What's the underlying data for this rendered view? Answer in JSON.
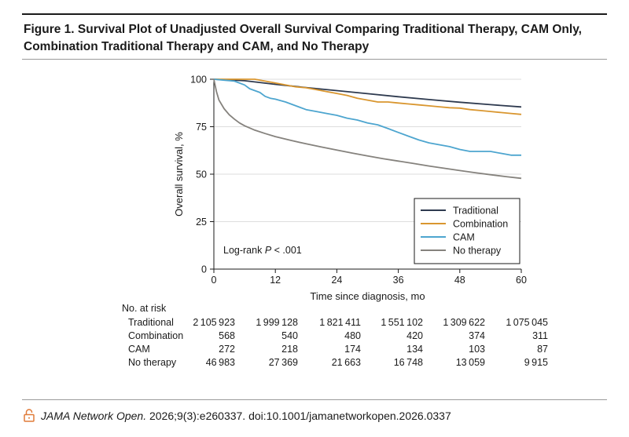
{
  "figure": {
    "title": "Figure 1. Survival Plot of Unadjusted Overall Survival Comparing Traditional Therapy, CAM Only, Combination Traditional Therapy and CAM, and No Therapy"
  },
  "chart_data": {
    "type": "line",
    "xlabel": "Time since diagnosis, mo",
    "ylabel": "Overall survival, %",
    "xlim": [
      0,
      60
    ],
    "ylim": [
      0,
      100
    ],
    "xticks": [
      0,
      12,
      24,
      36,
      48,
      60
    ],
    "yticks": [
      0,
      25,
      50,
      75,
      100
    ],
    "grid": "horizontal",
    "legend_position": "bottom-right",
    "annotation": "Log-rank P < .001",
    "series": [
      {
        "name": "Traditional",
        "color": "#2e3a4f",
        "x": [
          0,
          6,
          12,
          18,
          24,
          30,
          36,
          42,
          48,
          54,
          60
        ],
        "y": [
          100,
          99.2,
          97.3,
          95.6,
          94.0,
          92.4,
          90.8,
          89.3,
          87.9,
          86.6,
          85.4
        ]
      },
      {
        "name": "Combination",
        "color": "#d9962f",
        "x": [
          0,
          2,
          4,
          6,
          8,
          10,
          12,
          14,
          16,
          18,
          20,
          22,
          24,
          26,
          28,
          30,
          32,
          34,
          36,
          38,
          40,
          42,
          44,
          46,
          48,
          50,
          52,
          54,
          56,
          58,
          60
        ],
        "y": [
          100,
          100,
          100,
          100,
          100,
          99,
          98,
          97,
          96,
          95.5,
          94.5,
          93.5,
          92.5,
          91.5,
          90,
          89,
          88,
          88,
          87.5,
          87,
          86.5,
          86,
          85.5,
          85,
          84.8,
          84,
          83.5,
          83,
          82.5,
          82,
          81.5
        ]
      },
      {
        "name": "CAM",
        "color": "#4da5cf",
        "x": [
          0,
          2,
          4,
          6,
          7,
          8,
          9,
          10,
          11,
          12,
          14,
          16,
          18,
          20,
          22,
          24,
          26,
          28,
          30,
          32,
          34,
          36,
          38,
          40,
          42,
          44,
          46,
          48,
          50,
          52,
          54,
          56,
          58,
          60
        ],
        "y": [
          100,
          99.5,
          99,
          97,
          95,
          94,
          93,
          91,
          90,
          89.5,
          88,
          86,
          84,
          83,
          82,
          81,
          79.5,
          78.5,
          77,
          76,
          74,
          72,
          70,
          68,
          66.5,
          65.5,
          64.5,
          63,
          62,
          62,
          62,
          61,
          60,
          60
        ]
      },
      {
        "name": "No therapy",
        "color": "#85827d",
        "x": [
          0,
          0.5,
          1,
          2,
          3,
          4,
          5,
          6,
          8,
          10,
          12,
          15,
          18,
          21,
          24,
          27,
          30,
          33,
          36,
          39,
          42,
          45,
          48,
          51,
          54,
          57,
          60
        ],
        "y": [
          100,
          93.5,
          89,
          84.5,
          81.3,
          79,
          77,
          75.5,
          73.2,
          71.4,
          69.8,
          67.8,
          66,
          64.3,
          62.7,
          61.1,
          59.6,
          58.2,
          56.9,
          55.6,
          54.3,
          53.1,
          51.9,
          50.8,
          49.7,
          48.7,
          47.8
        ]
      }
    ],
    "risk_table": {
      "heading": "No. at risk",
      "rows": [
        {
          "label": "Traditional",
          "values": [
            "2105923",
            "1999128",
            "1821411",
            "1551102",
            "1309622",
            "1075045"
          ]
        },
        {
          "label": "Combination",
          "values": [
            "568",
            "540",
            "480",
            "420",
            "374",
            "311"
          ]
        },
        {
          "label": "CAM",
          "values": [
            "272",
            "218",
            "174",
            "134",
            "103",
            "87"
          ]
        },
        {
          "label": "No therapy",
          "values": [
            "46983",
            "27369",
            "21663",
            "16748",
            "13059",
            "9915"
          ]
        }
      ]
    }
  },
  "footer": {
    "lock_icon": "open-lock-icon",
    "lock_color": "#e07b39",
    "journal": "JAMA Network Open.",
    "citation": "2026;9(3):e260337. doi:10.1001/jamanetworkopen.2026.0337"
  }
}
